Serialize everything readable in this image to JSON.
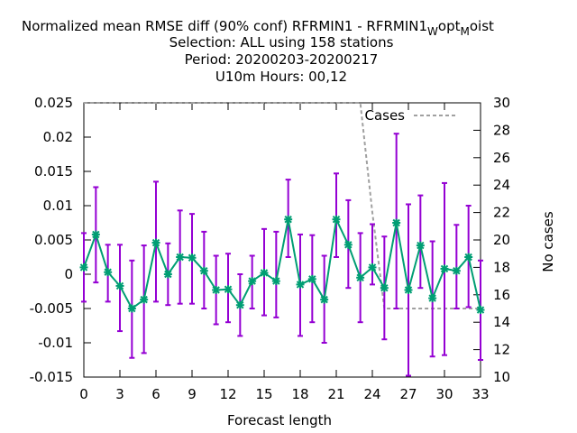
{
  "chart_data": {
    "type": "line",
    "title_lines": [
      "Normalized mean RMSE diff (90% conf) RFRMIN1 - RFRMIN1",
      "Selection: ALL using   158 stations",
      "Period: 20200203-20200217",
      "U10m   Hours:  00,12"
    ],
    "title_suffix": {
      "w": "W",
      "opt": "opt",
      "m": "M",
      "oist": "oist"
    },
    "xlabel": "Forecast length",
    "ylabel_right": "No cases",
    "xlim": [
      0,
      33
    ],
    "ylim": [
      -0.015,
      0.025
    ],
    "y2lim": [
      10,
      30
    ],
    "xticks": [
      "0",
      "3",
      "6",
      "9",
      "12",
      "15",
      "18",
      "21",
      "24",
      "27",
      "30",
      "33"
    ],
    "yticks": [
      "0.025",
      "0.02",
      "0.015",
      "0.01",
      "0.005",
      "0",
      "-0.005",
      "-0.01",
      "-0.015"
    ],
    "y2ticks": [
      "30",
      "28",
      "26",
      "24",
      "22",
      "20",
      "18",
      "16",
      "14",
      "12",
      "10"
    ],
    "grid": false,
    "legend_position": "top-right",
    "colors": {
      "errorbar": "#9400d3",
      "line": "#009e73",
      "cases": "#a0a0a0"
    },
    "series": [
      {
        "kind": "errorbars",
        "x": [
          0,
          1,
          2,
          3,
          4,
          5,
          6,
          7,
          8,
          9,
          10,
          11,
          12,
          13,
          14,
          15,
          16,
          17,
          18,
          19,
          20,
          21,
          22,
          23,
          24,
          25,
          26,
          27,
          28,
          29,
          30,
          31,
          32,
          33
        ],
        "y": [
          0.001,
          0.0058,
          0.0003,
          -0.0017,
          -0.005,
          -0.0037,
          0.0046,
          0.0,
          0.0025,
          0.0024,
          0.0005,
          -0.0023,
          -0.0022,
          -0.0045,
          -0.001,
          0.0002,
          -0.001,
          0.008,
          -0.0015,
          -0.0007,
          -0.0037,
          0.008,
          0.0043,
          -0.0005,
          0.001,
          -0.002,
          0.0075,
          -0.0023,
          0.0042,
          -0.0035,
          0.0008,
          0.0005,
          0.0025,
          -0.0052
        ],
        "low": [
          -0.004,
          -0.0012,
          -0.004,
          -0.0083,
          -0.0122,
          -0.0115,
          -0.004,
          -0.0045,
          -0.0043,
          -0.0043,
          -0.005,
          -0.0073,
          -0.007,
          -0.009,
          -0.005,
          -0.006,
          -0.0063,
          0.0025,
          -0.009,
          -0.007,
          -0.01,
          0.0025,
          -0.002,
          -0.007,
          -0.0015,
          -0.0095,
          -0.005,
          -0.0148,
          -0.002,
          -0.012,
          -0.0118,
          -0.005,
          -0.0048,
          -0.0125
        ],
        "high": [
          0.006,
          0.0127,
          0.0043,
          0.0043,
          0.002,
          0.0042,
          0.0135,
          0.0045,
          0.0093,
          0.0088,
          0.0062,
          0.0027,
          0.003,
          0.0,
          0.0027,
          0.0066,
          0.0062,
          0.0138,
          0.0058,
          0.0057,
          0.0027,
          0.0147,
          0.0108,
          0.006,
          0.0073,
          0.0055,
          0.0205,
          0.0102,
          0.0115,
          0.0048,
          0.0133,
          0.0072,
          0.01,
          0.002
        ]
      },
      {
        "name": "Cases",
        "kind": "cases",
        "axis": "right",
        "x": [
          0,
          1,
          2,
          3,
          4,
          5,
          6,
          7,
          8,
          9,
          10,
          11,
          12,
          13,
          14,
          15,
          16,
          17,
          18,
          19,
          20,
          21,
          22,
          23,
          24,
          25,
          26,
          27,
          28,
          29,
          30,
          31,
          32,
          33
        ],
        "values": [
          30,
          30,
          30,
          30,
          30,
          30,
          30,
          30,
          30,
          30,
          30,
          30,
          30,
          30,
          30,
          30,
          30,
          30,
          30,
          30,
          30,
          30,
          30,
          30,
          22,
          15,
          15,
          15,
          15,
          15,
          15,
          15,
          15,
          15
        ]
      }
    ]
  }
}
